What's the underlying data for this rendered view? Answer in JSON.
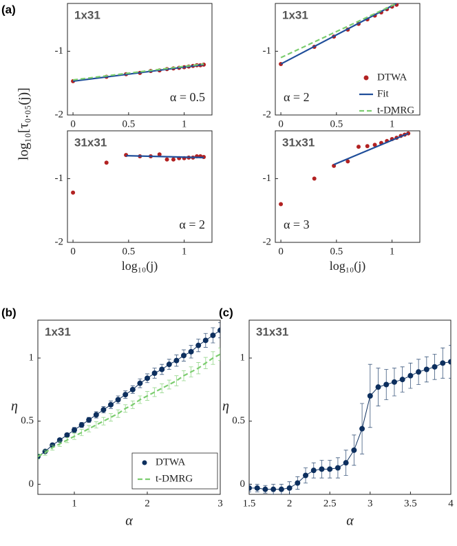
{
  "chart_data": [
    {
      "type": "scatter",
      "panel": "(a)",
      "ylabel": "log₁₀[τ₀.₀₅(j)]",
      "text": "1x31",
      "annotation": "α = 0.5",
      "xlim": [
        -0.05,
        1.25
      ],
      "ylim": [
        -2,
        -0.25
      ],
      "xticks": [
        0,
        0.5,
        1
      ],
      "yticks": [
        -2,
        -1
      ],
      "series": [
        {
          "style": "marker",
          "color": "#b22222",
          "x": [
            0,
            0.301,
            0.477,
            0.602,
            0.699,
            0.778,
            0.845,
            0.903,
            0.954,
            1,
            1.041,
            1.079,
            1.114,
            1.146,
            1.176
          ],
          "values": [
            -1.47,
            -1.4,
            -1.36,
            -1.34,
            -1.31,
            -1.3,
            -1.28,
            -1.27,
            -1.26,
            -1.25,
            -1.24,
            -1.23,
            -1.22,
            -1.22,
            -1.21
          ]
        },
        {
          "style": "solid",
          "color": "#1f4e9a",
          "x": [
            0,
            1.176
          ],
          "values": [
            -1.47,
            -1.21
          ]
        },
        {
          "style": "dashed",
          "color": "#7ccd6f",
          "x": [
            0,
            1.176
          ],
          "values": [
            -1.45,
            -1.2
          ]
        }
      ]
    },
    {
      "type": "scatter",
      "text": "1x31",
      "annotation": "α = 2",
      "legend": "right",
      "xlim": [
        -0.05,
        1.25
      ],
      "ylim": [
        -2,
        -0.25
      ],
      "xticks": [
        0,
        0.5,
        1
      ],
      "yticks": [
        -2,
        -1
      ],
      "series": [
        {
          "name": "DTWA",
          "style": "marker",
          "color": "#b22222",
          "x": [
            0,
            0.301,
            0.477,
            0.602,
            0.699,
            0.778,
            0.845,
            0.903,
            0.954,
            1,
            1.041
          ],
          "values": [
            -1.2,
            -0.93,
            -0.77,
            -0.66,
            -0.57,
            -0.5,
            -0.44,
            -0.39,
            -0.34,
            -0.3,
            -0.27
          ]
        },
        {
          "name": "Fit",
          "style": "solid",
          "color": "#1f4e9a",
          "x": [
            0,
            1.04
          ],
          "values": [
            -1.2,
            -0.25
          ]
        },
        {
          "name": "t-DMRG",
          "style": "dashed",
          "color": "#7ccd6f",
          "x": [
            0,
            1.04
          ],
          "values": [
            -1.1,
            -0.25
          ]
        }
      ]
    },
    {
      "type": "scatter",
      "text": "31x31",
      "annotation": "α = 2",
      "xlabel": "log₁₀(j)",
      "xlim": [
        -0.05,
        1.25
      ],
      "ylim": [
        -2,
        -0.25
      ],
      "xticks": [
        0,
        0.5,
        1
      ],
      "yticks": [
        -2,
        -1
      ],
      "series": [
        {
          "style": "marker",
          "color": "#b22222",
          "x": [
            0,
            0.301,
            0.477,
            0.602,
            0.699,
            0.778,
            0.845,
            0.903,
            0.954,
            1,
            1.041,
            1.079,
            1.114,
            1.146,
            1.176
          ],
          "values": [
            -1.22,
            -0.75,
            -0.63,
            -0.65,
            -0.65,
            -0.62,
            -0.7,
            -0.7,
            -0.68,
            -0.68,
            -0.67,
            -0.67,
            -0.65,
            -0.65,
            -0.66
          ]
        },
        {
          "style": "solid",
          "color": "#1f4e9a",
          "x": [
            0.477,
            1.176
          ],
          "values": [
            -0.64,
            -0.67
          ]
        }
      ]
    },
    {
      "type": "scatter",
      "text": "31x31",
      "annotation": "α = 3",
      "xlabel": "log₁₀(j)",
      "xlim": [
        -0.05,
        1.25
      ],
      "ylim": [
        -2,
        -0.25
      ],
      "xticks": [
        0,
        0.5,
        1
      ],
      "yticks": [
        -2,
        -1
      ],
      "series": [
        {
          "style": "marker",
          "color": "#b22222",
          "x": [
            0,
            0.301,
            0.477,
            0.602,
            0.699,
            0.778,
            0.845,
            0.903,
            0.954,
            1,
            1.041,
            1.079,
            1.114,
            1.146
          ],
          "values": [
            -1.4,
            -1.0,
            -0.8,
            -0.73,
            -0.5,
            -0.49,
            -0.47,
            -0.44,
            -0.41,
            -0.38,
            -0.36,
            -0.33,
            -0.31,
            -0.29
          ]
        },
        {
          "style": "solid",
          "color": "#1f4e9a",
          "x": [
            0.477,
            1.146
          ],
          "values": [
            -0.78,
            -0.29
          ]
        }
      ]
    },
    {
      "type": "line",
      "panel": "(b)",
      "text": "1x31",
      "xlabel": "α",
      "ylabel": "η",
      "legend": "lower right",
      "xlim": [
        0.5,
        3
      ],
      "ylim": [
        -0.08,
        1.3
      ],
      "xticks": [
        1,
        2,
        3
      ],
      "yticks": [
        0,
        0.5,
        1
      ],
      "series": [
        {
          "name": "DTWA",
          "style": "line-marker",
          "color": "#0d2f5e",
          "x": [
            0.5,
            0.6,
            0.7,
            0.8,
            0.9,
            1.0,
            1.1,
            1.2,
            1.3,
            1.4,
            1.5,
            1.6,
            1.7,
            1.8,
            1.9,
            2.0,
            2.1,
            2.2,
            2.3,
            2.4,
            2.5,
            2.6,
            2.7,
            2.8,
            2.9,
            3.0
          ],
          "values": [
            0.22,
            0.26,
            0.31,
            0.35,
            0.39,
            0.43,
            0.47,
            0.51,
            0.55,
            0.59,
            0.63,
            0.67,
            0.71,
            0.75,
            0.8,
            0.84,
            0.88,
            0.91,
            0.95,
            0.98,
            1.02,
            1.05,
            1.1,
            1.14,
            1.18,
            1.22
          ],
          "errors": [
            0.01,
            0.01,
            0.01,
            0.015,
            0.015,
            0.02,
            0.02,
            0.02,
            0.025,
            0.025,
            0.03,
            0.03,
            0.03,
            0.03,
            0.035,
            0.035,
            0.04,
            0.04,
            0.04,
            0.045,
            0.045,
            0.05,
            0.05,
            0.055,
            0.06,
            0.06
          ]
        },
        {
          "name": "t-DMRG",
          "style": "dashed",
          "color": "#7ccd6f",
          "x": [
            0.5,
            0.6,
            0.7,
            0.8,
            0.9,
            1.0,
            1.1,
            1.2,
            1.3,
            1.4,
            1.5,
            1.6,
            1.7,
            1.8,
            1.9,
            2.0,
            2.1,
            2.2,
            2.3,
            2.4,
            2.5,
            2.6,
            2.7,
            2.8,
            2.9,
            3.0
          ],
          "values": [
            0.22,
            0.25,
            0.29,
            0.32,
            0.35,
            0.38,
            0.41,
            0.44,
            0.47,
            0.5,
            0.53,
            0.56,
            0.6,
            0.63,
            0.67,
            0.7,
            0.73,
            0.76,
            0.79,
            0.82,
            0.86,
            0.89,
            0.92,
            0.96,
            1.0,
            1.03
          ],
          "errors": [
            0.02,
            0.02,
            0.02,
            0.02,
            0.02,
            0.025,
            0.025,
            0.025,
            0.025,
            0.03,
            0.03,
            0.03,
            0.03,
            0.03,
            0.03,
            0.035,
            0.035,
            0.035,
            0.035,
            0.04,
            0.04,
            0.04,
            0.045,
            0.045,
            0.05,
            0.05
          ]
        }
      ]
    },
    {
      "type": "line",
      "panel": "(c)",
      "text": "31x31",
      "xlabel": "α",
      "ylabel": "η",
      "xlim": [
        1.5,
        4
      ],
      "ylim": [
        -0.08,
        1.3
      ],
      "xticks": [
        1.5,
        2,
        2.5,
        3,
        3.5,
        4
      ],
      "yticks": [
        0,
        0.5,
        1
      ],
      "series": [
        {
          "style": "line-marker",
          "color": "#0d2f5e",
          "x": [
            1.5,
            1.6,
            1.7,
            1.8,
            1.9,
            2.0,
            2.1,
            2.2,
            2.3,
            2.4,
            2.5,
            2.6,
            2.7,
            2.8,
            2.9,
            3.0,
            3.1,
            3.2,
            3.3,
            3.4,
            3.5,
            3.6,
            3.7,
            3.8,
            3.9,
            4.0
          ],
          "values": [
            -0.03,
            -0.03,
            -0.04,
            -0.04,
            -0.04,
            -0.03,
            0.01,
            0.07,
            0.11,
            0.12,
            0.12,
            0.13,
            0.17,
            0.27,
            0.44,
            0.7,
            0.77,
            0.79,
            0.81,
            0.83,
            0.86,
            0.89,
            0.91,
            0.93,
            0.96,
            0.97
          ],
          "errors": [
            0.03,
            0.03,
            0.03,
            0.04,
            0.04,
            0.05,
            0.05,
            0.06,
            0.06,
            0.07,
            0.07,
            0.08,
            0.1,
            0.12,
            0.2,
            0.25,
            0.15,
            0.12,
            0.11,
            0.1,
            0.1,
            0.1,
            0.1,
            0.1,
            0.12,
            0.13
          ]
        }
      ]
    }
  ]
}
